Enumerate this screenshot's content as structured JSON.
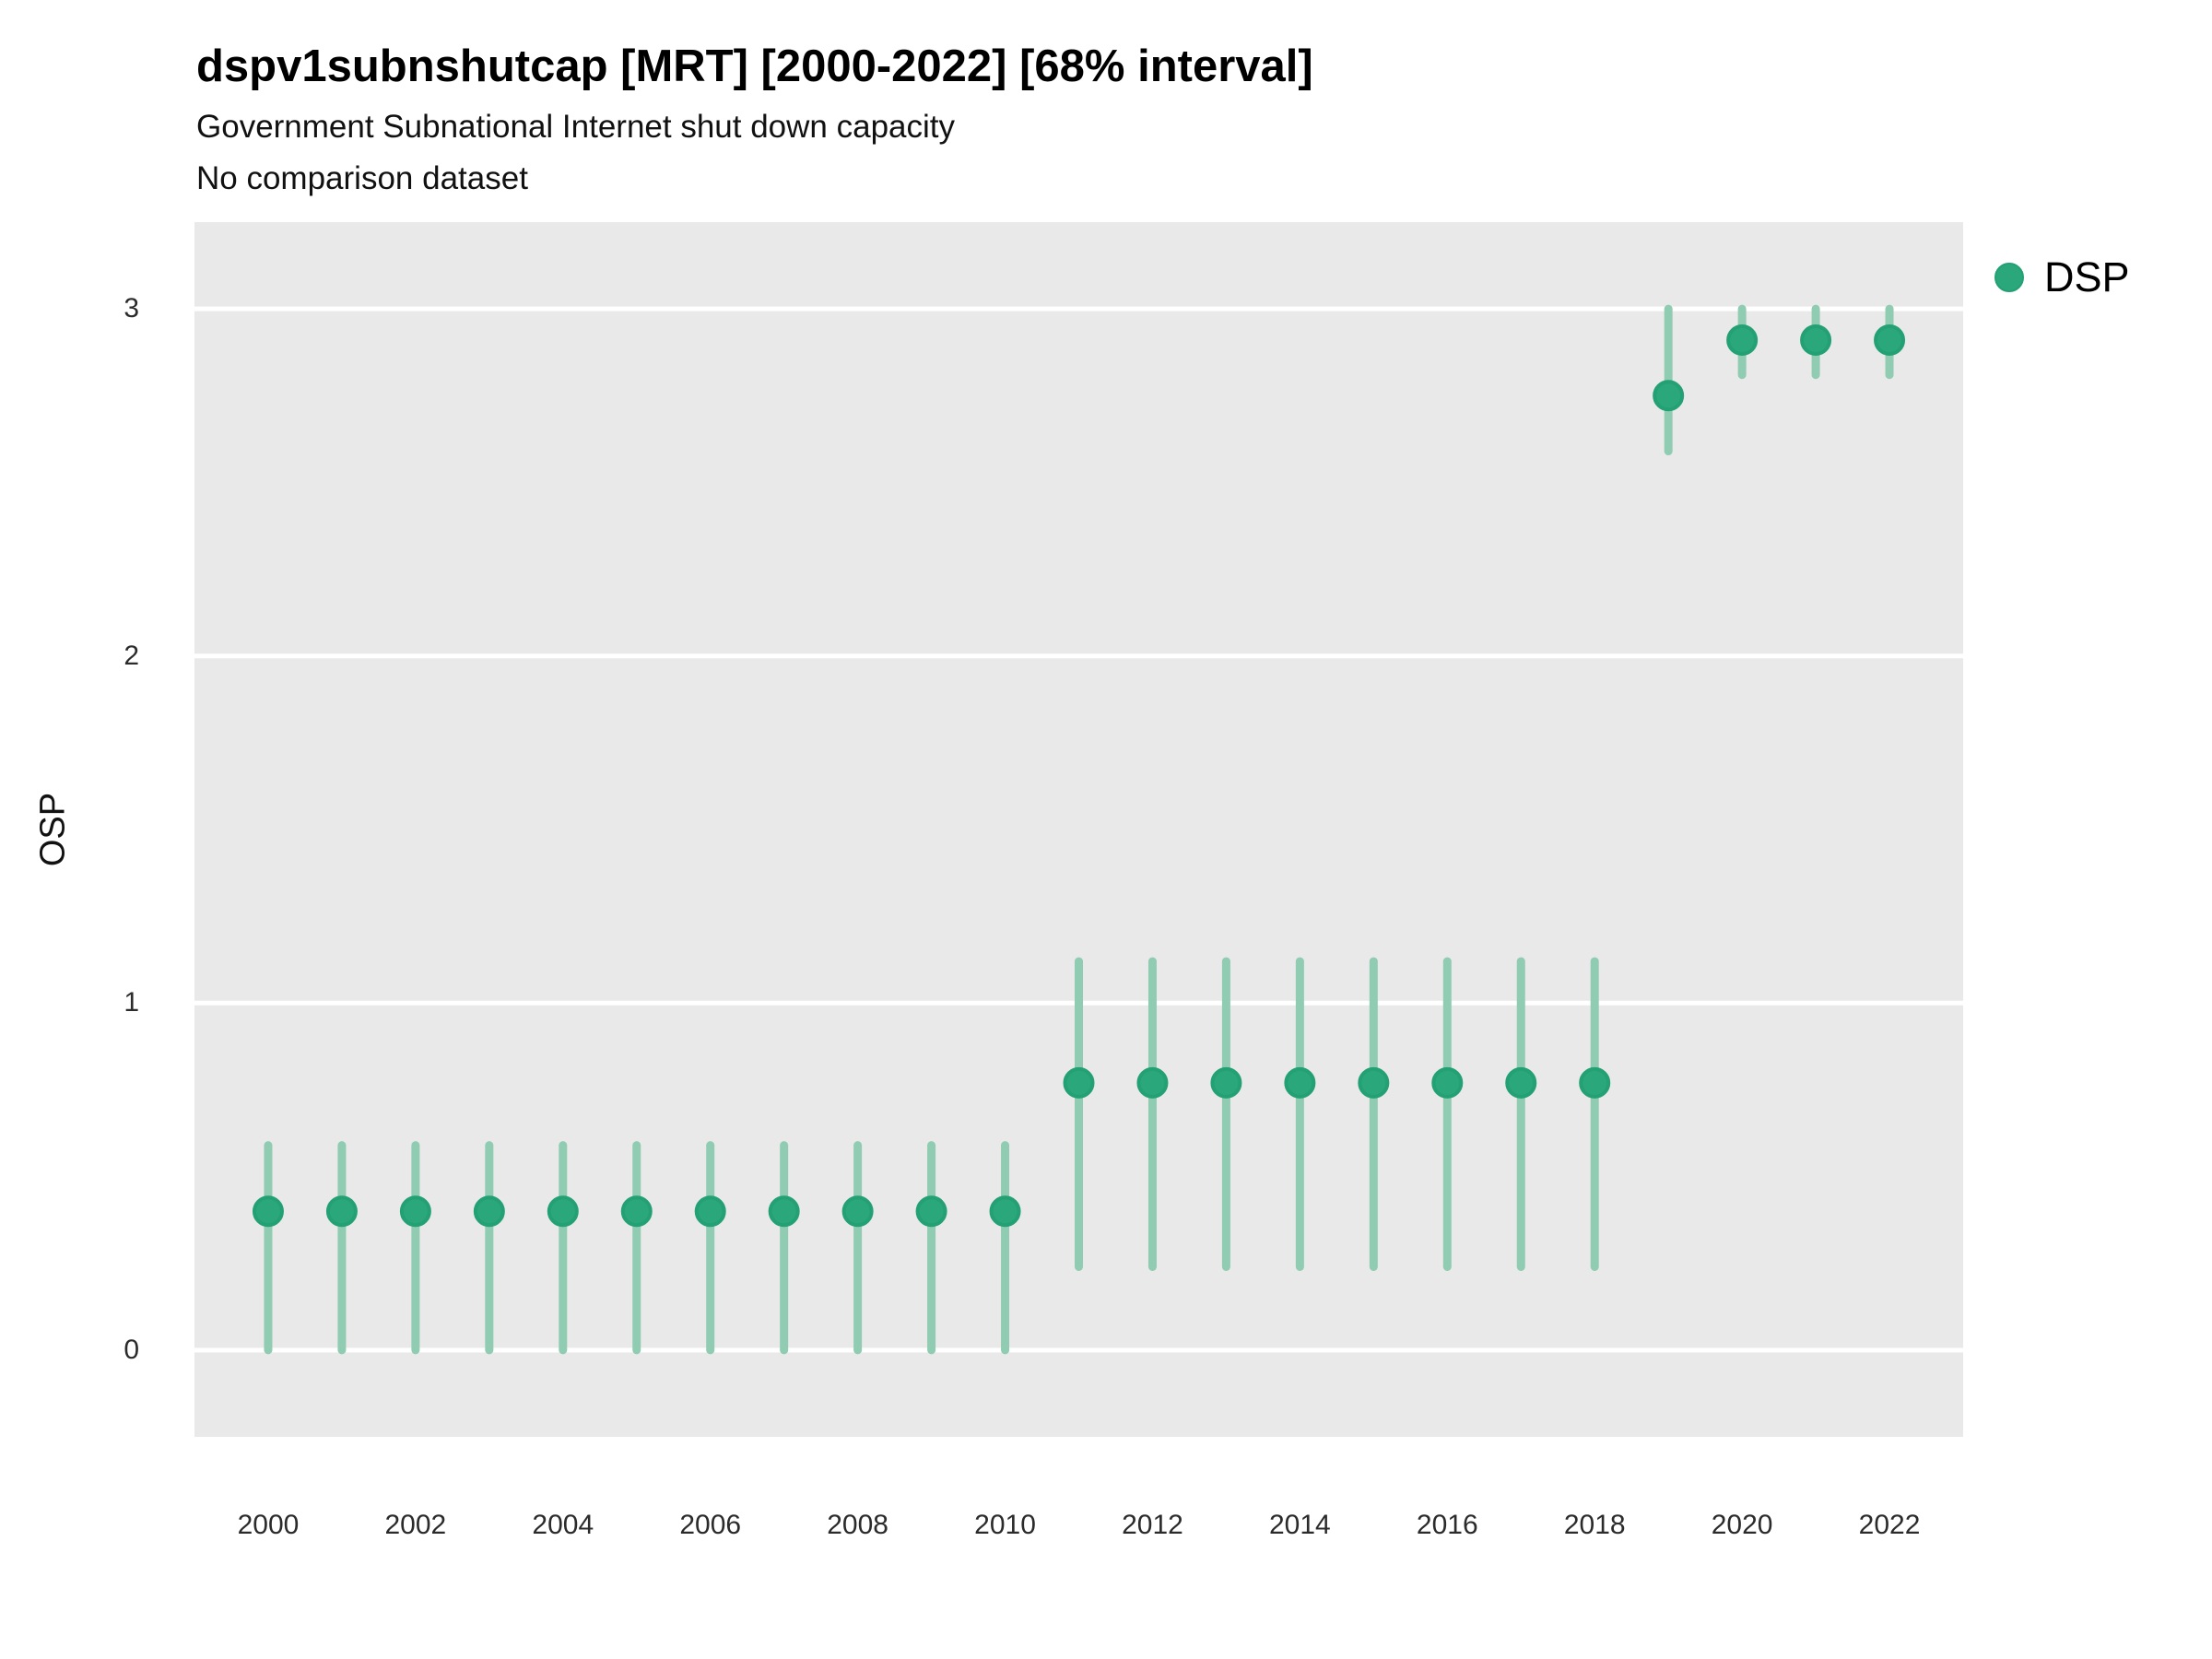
{
  "header": {
    "title": "dspv1subnshutcap [MRT] [2000-2022] [68% interval]",
    "subtitle": "Government Subnational Internet shut down capacity",
    "note": "No comparison dataset"
  },
  "legend": {
    "position": "right",
    "entries": [
      {
        "label": "DSP",
        "color": "#2aa87c"
      }
    ]
  },
  "chart_data": {
    "type": "scatter",
    "subtype": "pointrange",
    "title": "dspv1subnshutcap [MRT] [2000-2022] [68% interval]",
    "subtitle": "Government Subnational Internet shut down capacity",
    "note": "No comparison dataset",
    "xlabel": "",
    "ylabel": "OSP",
    "xlim": [
      1999,
      2023
    ],
    "ylim": [
      -0.25,
      3.25
    ],
    "x_ticks": [
      2000,
      2002,
      2004,
      2006,
      2008,
      2010,
      2012,
      2014,
      2016,
      2018,
      2020,
      2022
    ],
    "y_ticks": [
      0,
      1,
      2,
      3
    ],
    "grid": "major white gridlines on gray panel, no axis lines, no tick marks",
    "colors": {
      "panel_background": "#e9e9e9",
      "gridline": "#ffffff",
      "point_fill": "#2aa87c",
      "point_stroke": "#23a074",
      "interval_line": "#8fccb2",
      "text": "#111111"
    },
    "series": [
      {
        "name": "DSP",
        "points": [
          {
            "year": 2000,
            "est": 0.4,
            "lo": 0.0,
            "hi": 0.59
          },
          {
            "year": 2001,
            "est": 0.4,
            "lo": 0.0,
            "hi": 0.59
          },
          {
            "year": 2002,
            "est": 0.4,
            "lo": 0.0,
            "hi": 0.59
          },
          {
            "year": 2003,
            "est": 0.4,
            "lo": 0.0,
            "hi": 0.59
          },
          {
            "year": 2004,
            "est": 0.4,
            "lo": 0.0,
            "hi": 0.59
          },
          {
            "year": 2005,
            "est": 0.4,
            "lo": 0.0,
            "hi": 0.59
          },
          {
            "year": 2006,
            "est": 0.4,
            "lo": 0.0,
            "hi": 0.59
          },
          {
            "year": 2007,
            "est": 0.4,
            "lo": 0.0,
            "hi": 0.59
          },
          {
            "year": 2008,
            "est": 0.4,
            "lo": 0.0,
            "hi": 0.59
          },
          {
            "year": 2009,
            "est": 0.4,
            "lo": 0.0,
            "hi": 0.59
          },
          {
            "year": 2010,
            "est": 0.4,
            "lo": 0.0,
            "hi": 0.59
          },
          {
            "year": 2011,
            "est": 0.77,
            "lo": 0.24,
            "hi": 1.12
          },
          {
            "year": 2012,
            "est": 0.77,
            "lo": 0.24,
            "hi": 1.12
          },
          {
            "year": 2013,
            "est": 0.77,
            "lo": 0.24,
            "hi": 1.12
          },
          {
            "year": 2014,
            "est": 0.77,
            "lo": 0.24,
            "hi": 1.12
          },
          {
            "year": 2015,
            "est": 0.77,
            "lo": 0.24,
            "hi": 1.12
          },
          {
            "year": 2016,
            "est": 0.77,
            "lo": 0.24,
            "hi": 1.12
          },
          {
            "year": 2017,
            "est": 0.77,
            "lo": 0.24,
            "hi": 1.12
          },
          {
            "year": 2018,
            "est": 0.77,
            "lo": 0.24,
            "hi": 1.12
          },
          {
            "year": 2019,
            "est": 2.75,
            "lo": 2.59,
            "hi": 3.0
          },
          {
            "year": 2020,
            "est": 2.91,
            "lo": 2.81,
            "hi": 3.0
          },
          {
            "year": 2021,
            "est": 2.91,
            "lo": 2.81,
            "hi": 3.0
          },
          {
            "year": 2022,
            "est": 2.91,
            "lo": 2.81,
            "hi": 3.0
          }
        ]
      }
    ]
  }
}
